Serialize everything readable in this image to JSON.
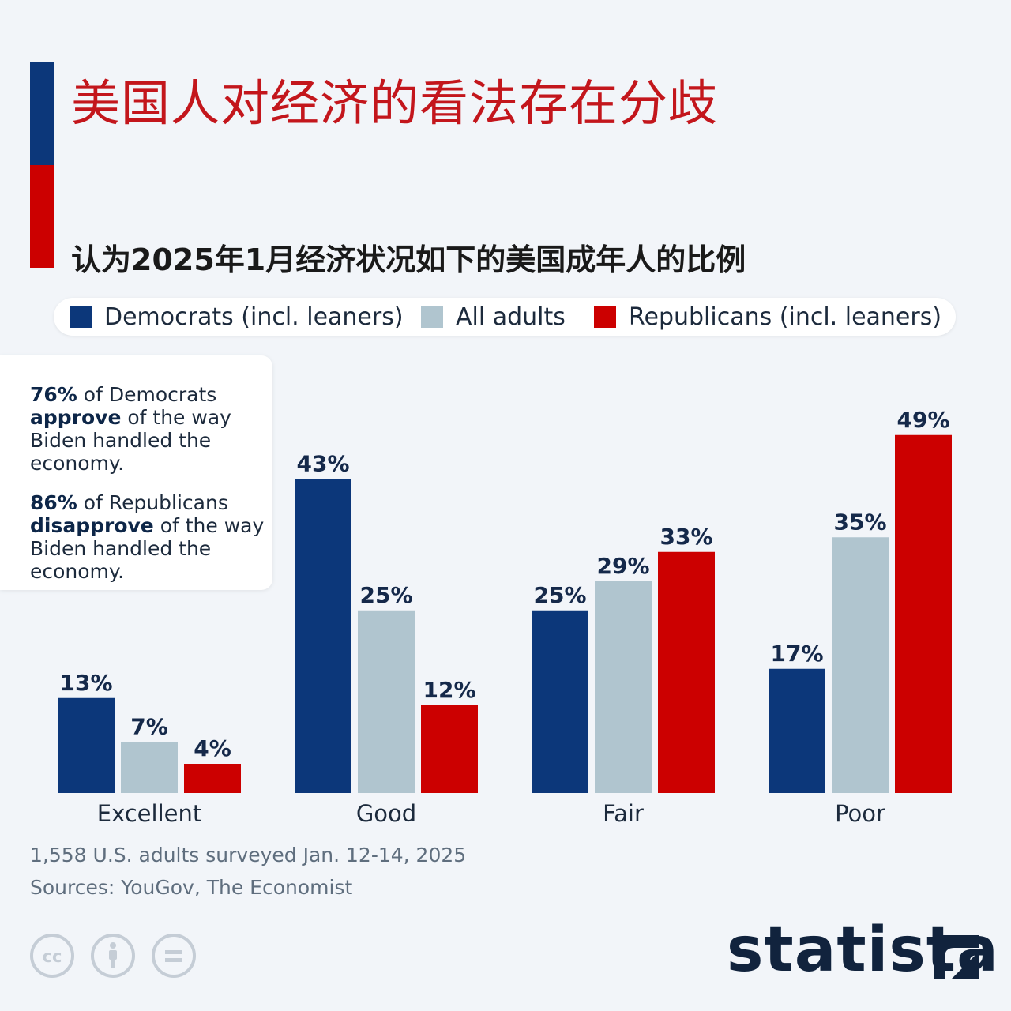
{
  "header": {
    "title": "美国人对经济的看法存在分歧",
    "subtitle": "认为2025年1月经济状况如下的美国成年人的比例"
  },
  "callout": {
    "p1_bold1": "76%",
    "p1_text1": " of Democrats ",
    "p1_bold2": "approve",
    "p1_text2": " of the way Biden handled the economy.",
    "p2_bold1": "86%",
    "p2_text1": " of Republicans ",
    "p2_bold2": "disapprove",
    "p2_text2": " of the way Biden handled the economy."
  },
  "footer": {
    "note": "1,558 U.S. adults surveyed Jan. 12-14, 2025",
    "sources": "Sources: YouGov, The Economist"
  },
  "logo": {
    "text": "statista",
    "icon": "statista-logo-icon"
  },
  "license_icons": [
    "cc-icon",
    "attribution-icon",
    "no-derivatives-icon"
  ],
  "colors": {
    "democrats": "#0c377a",
    "all_adults": "#b0c5cf",
    "republicans": "#cc0000",
    "title": "#c3161c"
  },
  "chart_data": {
    "type": "bar",
    "title": "美国人对经济的看法存在分歧",
    "subtitle": "认为2025年1月经济状况如下的美国成年人的比例",
    "categories": [
      "Excellent",
      "Good",
      "Fair",
      "Poor"
    ],
    "series": [
      {
        "name": "Democrats (incl. leaners)",
        "values": [
          13,
          43,
          25,
          17
        ],
        "color": "#0c377a"
      },
      {
        "name": "All adults",
        "values": [
          7,
          25,
          29,
          35
        ],
        "color": "#b0c5cf"
      },
      {
        "name": "Republicans (incl. leaners)",
        "values": [
          4,
          12,
          33,
          49
        ],
        "color": "#cc0000"
      }
    ],
    "value_suffix": "%",
    "ylim": [
      0,
      49
    ],
    "grid": false,
    "legend_position": "top"
  }
}
